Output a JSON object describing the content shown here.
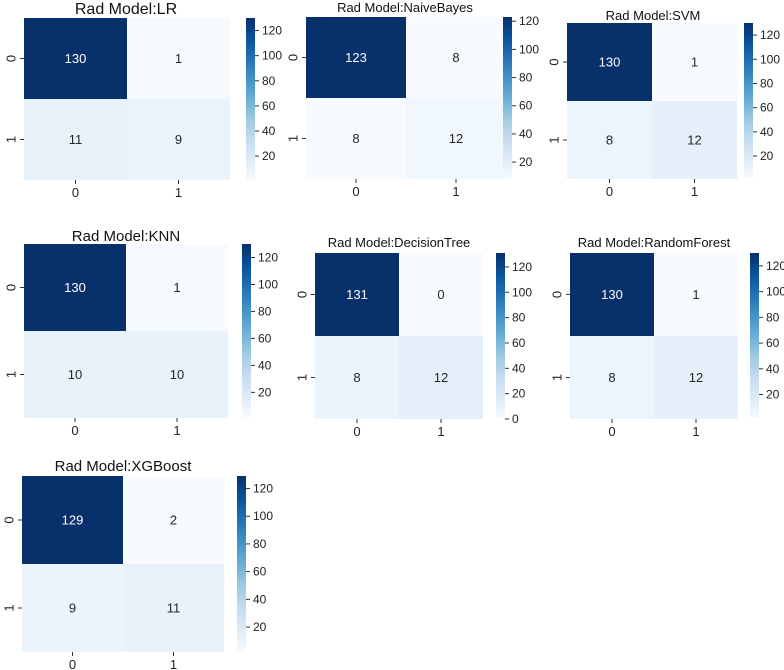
{
  "chart_data": [
    {
      "type": "heatmap",
      "title": "Rad Model:LR",
      "x_tick_labels": [
        "0",
        "1"
      ],
      "y_tick_labels": [
        "0",
        "1"
      ],
      "matrix": [
        [
          130,
          1
        ],
        [
          11,
          9
        ]
      ],
      "colorbar_ticks": [
        20,
        40,
        60,
        80,
        100,
        120
      ],
      "color_range": [
        1,
        130
      ],
      "colormap": "Blues"
    },
    {
      "type": "heatmap",
      "title": "Rad Model:NaiveBayes",
      "x_tick_labels": [
        "0",
        "1"
      ],
      "y_tick_labels": [
        "0",
        "1"
      ],
      "matrix": [
        [
          123,
          8
        ],
        [
          8,
          12
        ]
      ],
      "colorbar_ticks": [
        20,
        40,
        60,
        80,
        100,
        120
      ],
      "color_range": [
        8,
        123
      ],
      "colormap": "Blues"
    },
    {
      "type": "heatmap",
      "title": "Rad Model:SVM",
      "x_tick_labels": [
        "0",
        "1"
      ],
      "y_tick_labels": [
        "0",
        "1"
      ],
      "matrix": [
        [
          130,
          1
        ],
        [
          8,
          12
        ]
      ],
      "colorbar_ticks": [
        20,
        40,
        60,
        80,
        100,
        120
      ],
      "color_range": [
        1,
        130
      ],
      "colormap": "Blues"
    },
    {
      "type": "heatmap",
      "title": "Rad Model:KNN",
      "x_tick_labels": [
        "0",
        "1"
      ],
      "y_tick_labels": [
        "0",
        "1"
      ],
      "matrix": [
        [
          130,
          1
        ],
        [
          10,
          10
        ]
      ],
      "colorbar_ticks": [
        20,
        40,
        60,
        80,
        100,
        120
      ],
      "color_range": [
        1,
        130
      ],
      "colormap": "Blues"
    },
    {
      "type": "heatmap",
      "title": "Rad Model:DecisionTree",
      "x_tick_labels": [
        "0",
        "1"
      ],
      "y_tick_labels": [
        "0",
        "1"
      ],
      "matrix": [
        [
          131,
          0
        ],
        [
          8,
          12
        ]
      ],
      "colorbar_ticks": [
        0,
        20,
        40,
        60,
        80,
        100,
        120
      ],
      "color_range": [
        0,
        131
      ],
      "colormap": "Blues"
    },
    {
      "type": "heatmap",
      "title": "Rad Model:RandomForest",
      "x_tick_labels": [
        "0",
        "1"
      ],
      "y_tick_labels": [
        "0",
        "1"
      ],
      "matrix": [
        [
          130,
          1
        ],
        [
          8,
          12
        ]
      ],
      "colorbar_ticks": [
        20,
        40,
        60,
        80,
        100,
        120
      ],
      "color_range": [
        1,
        130
      ],
      "colormap": "Blues"
    },
    {
      "type": "heatmap",
      "title": "Rad Model:XGBoost",
      "x_tick_labels": [
        "0",
        "1"
      ],
      "y_tick_labels": [
        "0",
        "1"
      ],
      "matrix": [
        [
          129,
          2
        ],
        [
          9,
          11
        ]
      ],
      "colorbar_ticks": [
        20,
        40,
        60,
        80,
        100,
        120
      ],
      "color_range": [
        2,
        129
      ],
      "colormap": "Blues"
    }
  ]
}
